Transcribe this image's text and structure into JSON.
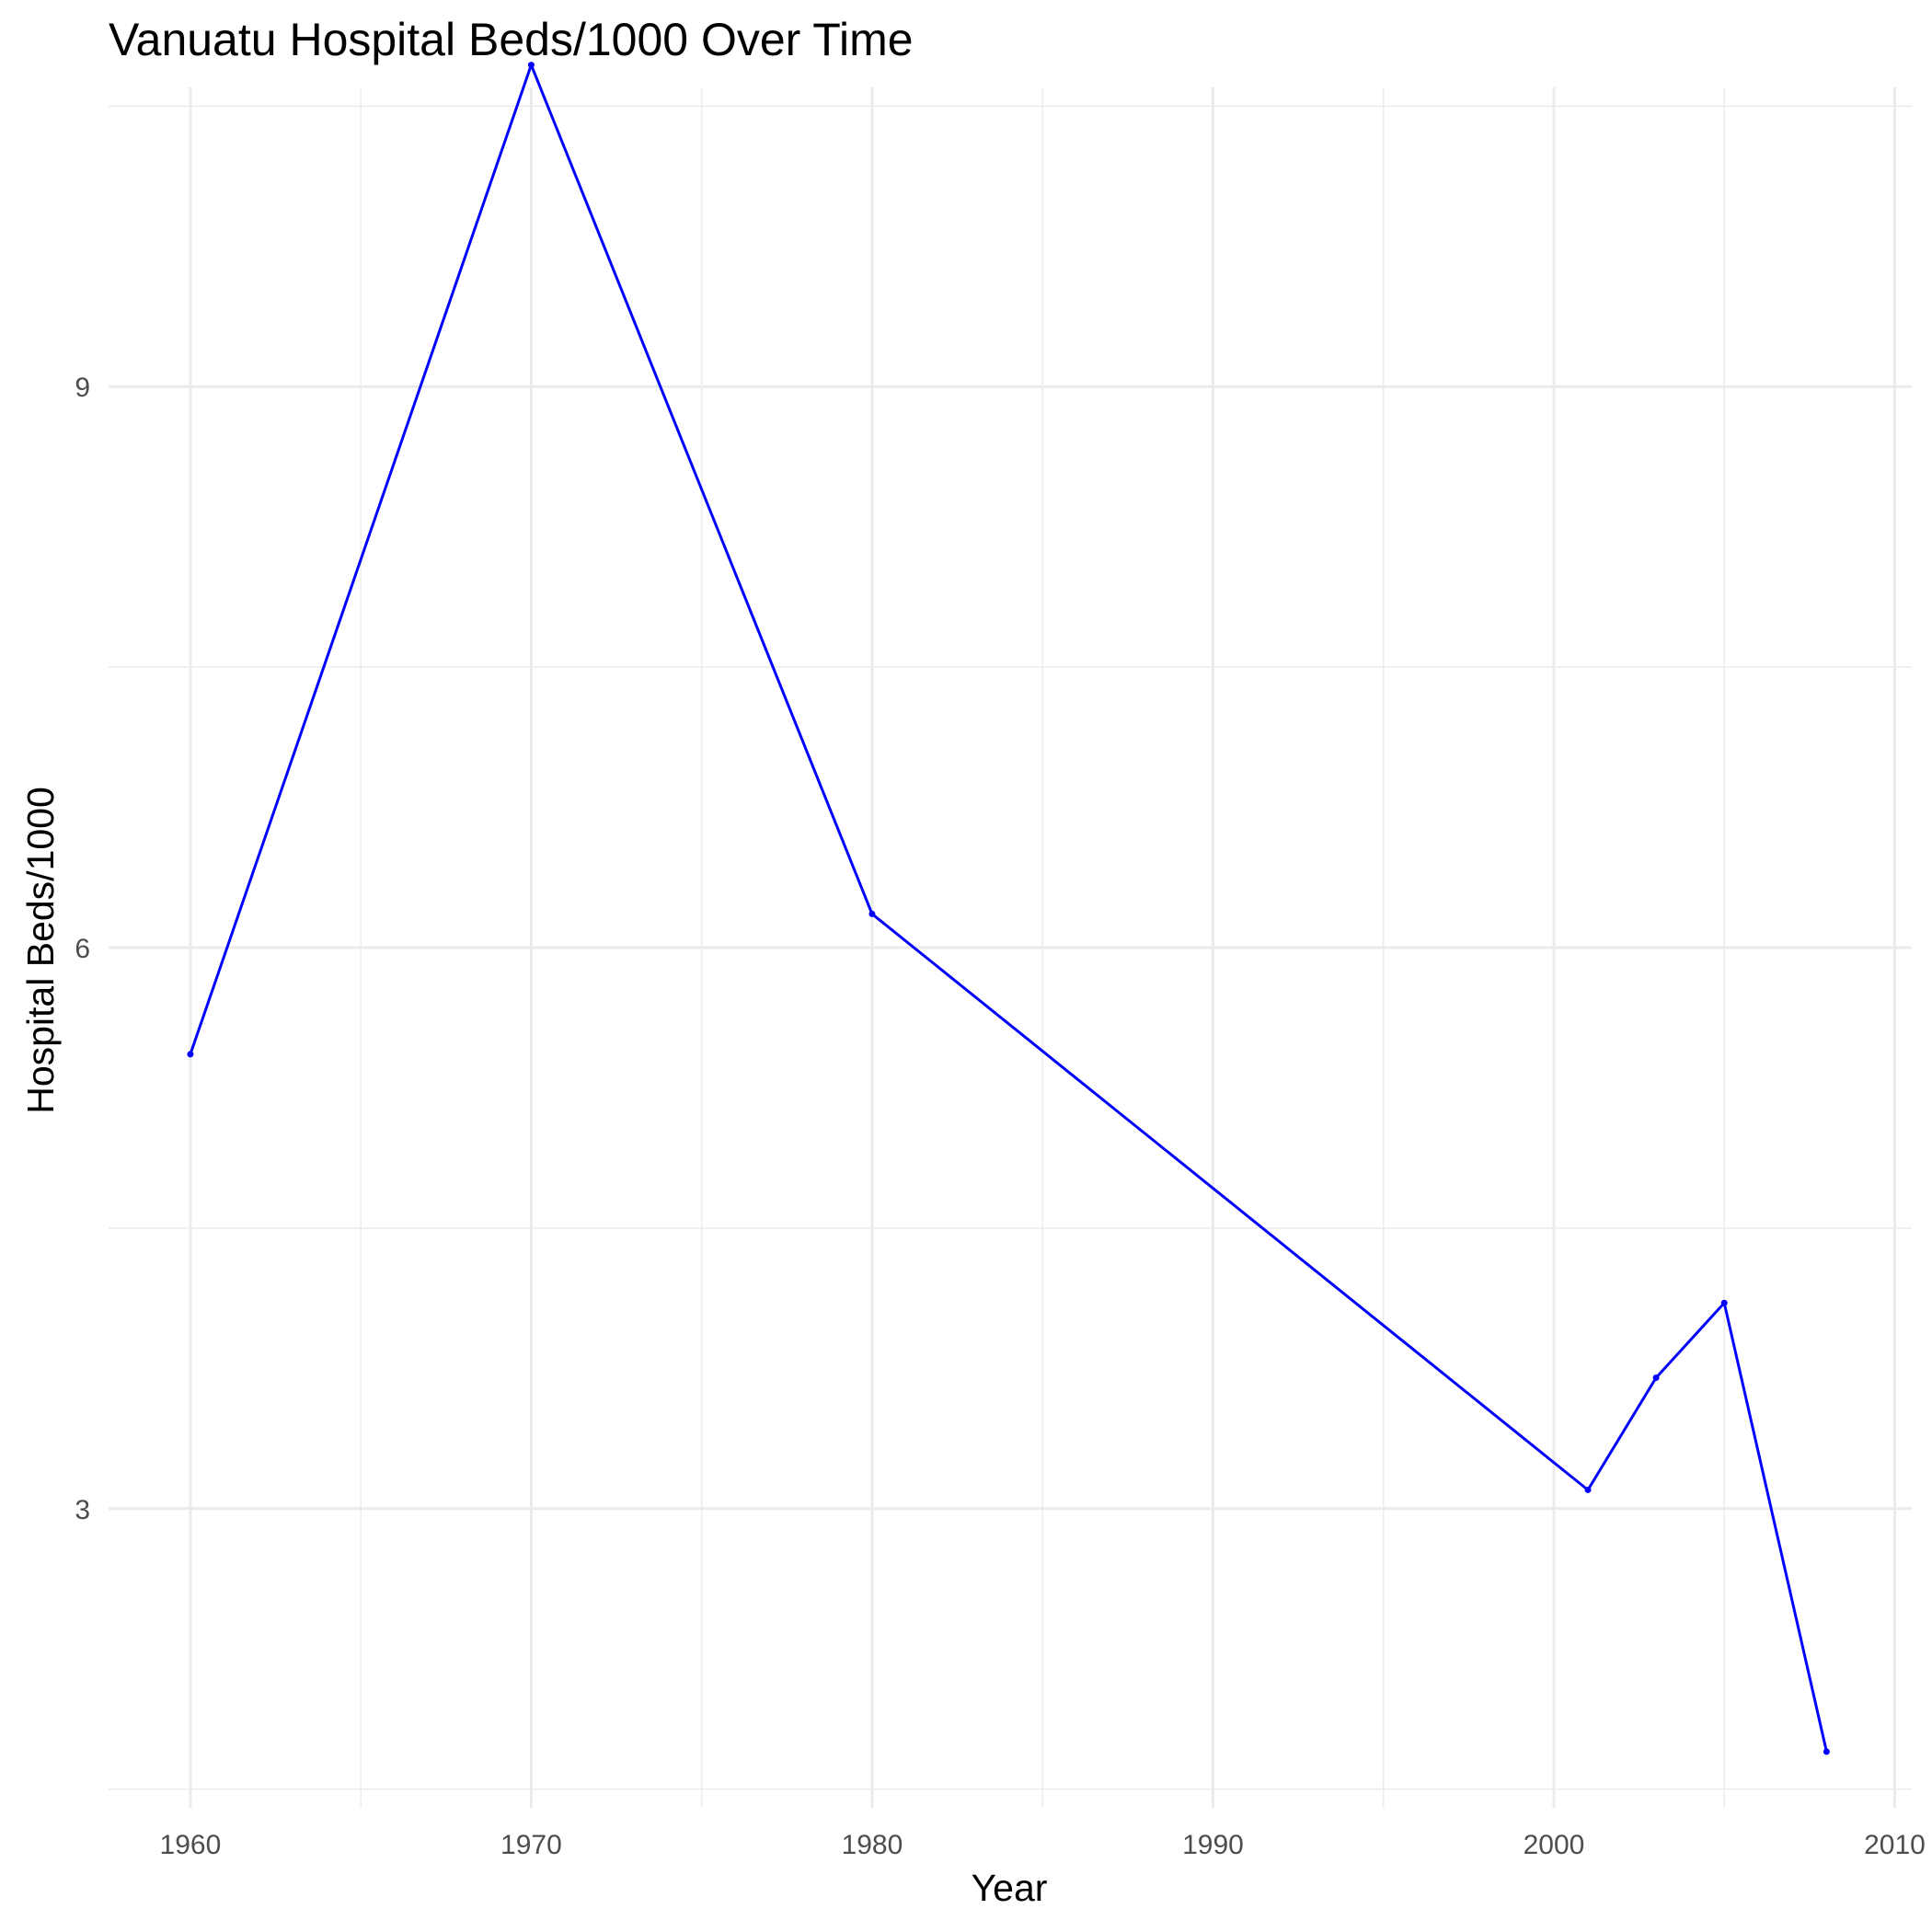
{
  "chart_data": {
    "type": "line",
    "title": "Vanuatu Hospital Beds/1000 Over Time",
    "xlabel": "Year",
    "ylabel": "Hospital Beds/1000",
    "xlim": [
      1957.6,
      2010.5
    ],
    "ylim": [
      1.4,
      10.6
    ],
    "x_ticks": [
      1960,
      1970,
      1980,
      1990,
      2000,
      2010
    ],
    "x_tick_labels": [
      "1960",
      "1970",
      "1980",
      "1990",
      "2000",
      "2010"
    ],
    "y_ticks": [
      3,
      6,
      9
    ],
    "y_tick_labels": [
      "3",
      "6",
      "9"
    ],
    "grid": true,
    "legend": "none",
    "series": [
      {
        "color": "#0000ff",
        "x": [
          1960,
          1970,
          1980,
          2001,
          2003,
          2005,
          2008
        ],
        "y": [
          5.43,
          10.72,
          6.18,
          3.1,
          3.7,
          4.1,
          1.7
        ]
      }
    ]
  }
}
